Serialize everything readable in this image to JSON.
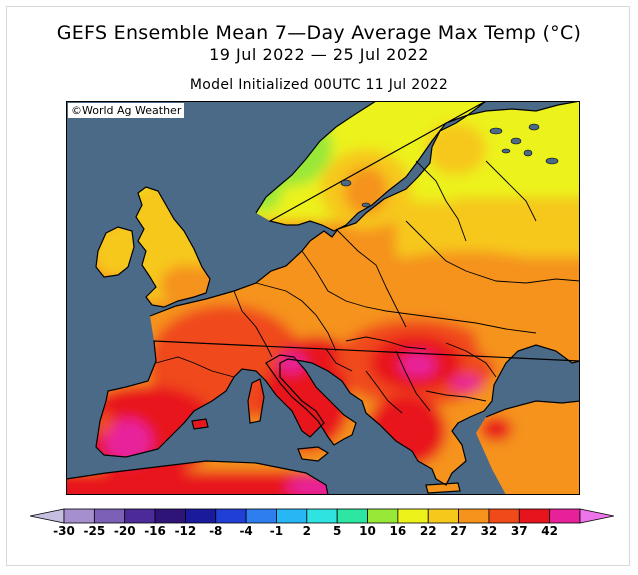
{
  "title": {
    "line1": "GEFS Ensemble Mean 7—Day Average Max Temp (°C)",
    "line2": "19 Jul 2022 — 25 Jul 2022",
    "line3": "Model Initialized 00UTC 11 Jul 2022"
  },
  "credit": "©World Ag Weather",
  "map": {
    "region": "Europe",
    "colors": {
      "sea": "#4a6a88",
      "border": "#000000"
    }
  },
  "colorbar": {
    "ticks": [
      "-30",
      "-25",
      "-20",
      "-16",
      "-12",
      "-8",
      "-4",
      "-1",
      "2",
      "5",
      "10",
      "16",
      "22",
      "27",
      "32",
      "37",
      "42"
    ],
    "colors": [
      "#c7bfe0",
      "#a58fcf",
      "#7c5fb6",
      "#4d2a9a",
      "#2e1479",
      "#1a1a9c",
      "#1f3fd6",
      "#2f7ef0",
      "#27b7f5",
      "#2ee3e0",
      "#2ce6a2",
      "#98e838",
      "#ecf21a",
      "#f6c81a",
      "#f5931c",
      "#f04a1a",
      "#e8141d",
      "#e8219b",
      "#ee74ea"
    ]
  }
}
